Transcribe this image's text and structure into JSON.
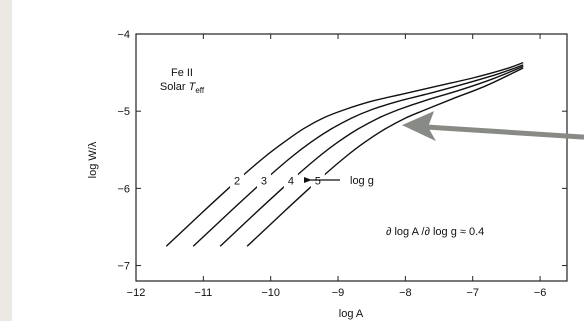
{
  "chart_data": {
    "type": "line",
    "title": "",
    "xlabel": "log A",
    "ylabel": "log W/λ",
    "xlim": [
      -12,
      -5.6
    ],
    "ylim": [
      -7.2,
      -4
    ],
    "xticks": [
      -12,
      -11,
      -10,
      -9,
      -8,
      -7,
      -6
    ],
    "yticks": [
      -7,
      -6,
      -5,
      -4
    ],
    "xtick_labels": [
      "−12",
      "−11",
      "−10",
      "−9",
      "−8",
      "−7",
      "−6"
    ],
    "ytick_labels": [
      "−7",
      "−6",
      "−5",
      "−4"
    ],
    "grid": false,
    "legend": "none",
    "annotations": {
      "species": "Fe II",
      "solar_prefix": "Solar ",
      "teff_main": "T",
      "teff_sub": "eff",
      "logg_label": "log g",
      "derivative": "∂ log A /∂ log g ≈ 0.4"
    },
    "series": [
      {
        "label": "2",
        "x": [
          -11.55,
          -11.0,
          -10.5,
          -10.1,
          -9.8,
          -9.5,
          -9.2,
          -8.9,
          -8.5,
          -8.0,
          -7.5,
          -7.0,
          -6.5,
          -6.25
        ],
        "y": [
          -6.75,
          -6.3,
          -5.9,
          -5.6,
          -5.4,
          -5.22,
          -5.08,
          -4.98,
          -4.87,
          -4.77,
          -4.67,
          -4.57,
          -4.45,
          -4.37
        ]
      },
      {
        "label": "3",
        "x": [
          -11.15,
          -10.6,
          -10.1,
          -9.7,
          -9.4,
          -9.1,
          -8.8,
          -8.5,
          -8.1,
          -7.6,
          -7.1,
          -6.6,
          -6.25
        ],
        "y": [
          -6.75,
          -6.3,
          -5.9,
          -5.6,
          -5.4,
          -5.23,
          -5.09,
          -4.98,
          -4.87,
          -4.76,
          -4.64,
          -4.51,
          -4.4
        ]
      },
      {
        "label": "4",
        "x": [
          -10.75,
          -10.2,
          -9.7,
          -9.3,
          -9.0,
          -8.7,
          -8.4,
          -8.1,
          -7.7,
          -7.2,
          -6.7,
          -6.25
        ],
        "y": [
          -6.75,
          -6.3,
          -5.9,
          -5.6,
          -5.4,
          -5.23,
          -5.09,
          -4.98,
          -4.86,
          -4.73,
          -4.58,
          -4.42
        ]
      },
      {
        "label": "5",
        "x": [
          -10.35,
          -9.8,
          -9.3,
          -8.9,
          -8.6,
          -8.3,
          -8.0,
          -7.7,
          -7.3,
          -6.8,
          -6.25
        ],
        "y": [
          -6.75,
          -6.3,
          -5.9,
          -5.6,
          -5.4,
          -5.23,
          -5.09,
          -4.98,
          -4.84,
          -4.67,
          -4.44
        ]
      }
    ],
    "pointer_arrow": {
      "x": -8.05,
      "y": -5.18,
      "color": "#878a85"
    }
  }
}
